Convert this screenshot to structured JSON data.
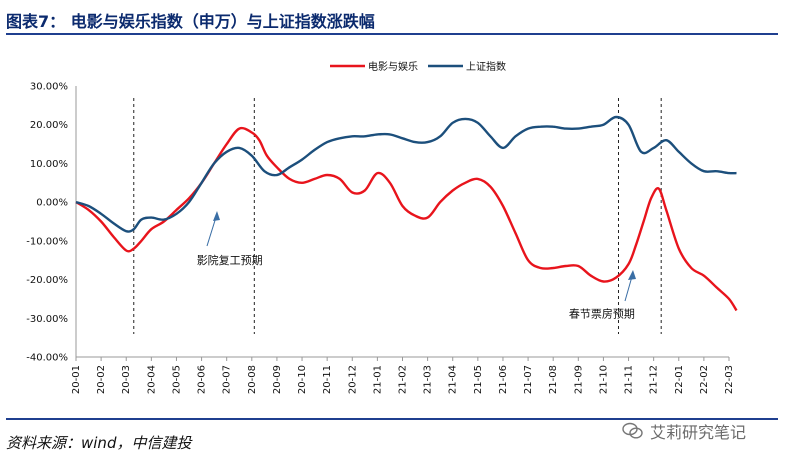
{
  "header": {
    "title": "图表7： 电影与娱乐指数（申万）与上证指数涨跌幅"
  },
  "footer": {
    "source": "资料来源：wind，中信建投",
    "watermark": "艾莉研究笔记"
  },
  "colors": {
    "film": "#e8141c",
    "index": "#1c4f7c",
    "title": "#0b2a6e",
    "rule": "#1f3f8f"
  },
  "chart_data": {
    "type": "line",
    "title": "",
    "xlabel": "",
    "ylabel": "",
    "ylim": [
      -40,
      30
    ],
    "yticks": [
      "30.00%",
      "20.00%",
      "10.00%",
      "0.00%",
      "-10.00%",
      "-20.00%",
      "-30.00%",
      "-40.00%"
    ],
    "ytick_values": [
      30,
      20,
      10,
      0,
      -10,
      -20,
      -30,
      -40
    ],
    "categories": [
      "20-01",
      "20-02",
      "20-03",
      "20-04",
      "20-05",
      "20-06",
      "20-07",
      "20-08",
      "20-09",
      "20-10",
      "20-11",
      "20-12",
      "21-01",
      "21-02",
      "21-03",
      "21-04",
      "21-05",
      "21-06",
      "21-07",
      "21-08",
      "21-09",
      "21-10",
      "21-11",
      "21-12",
      "22-01",
      "22-02",
      "22-03"
    ],
    "series": [
      {
        "name": "电影与娱乐",
        "color": "#e8141c",
        "x": [
          0,
          0.5,
          1,
          1.5,
          2,
          2.3,
          2.6,
          3,
          3.5,
          4,
          4.5,
          5,
          5.5,
          6,
          6.5,
          7,
          7.3,
          7.6,
          8,
          8.5,
          9,
          9.5,
          10,
          10.5,
          11,
          11.5,
          12,
          12.5,
          13,
          13.5,
          14,
          14.5,
          15,
          15.5,
          16,
          16.5,
          17,
          17.5,
          18,
          18.5,
          19,
          19.5,
          20,
          20.5,
          21,
          21.5,
          22,
          22.3,
          22.6,
          22.9,
          23.2,
          23.5,
          24,
          24.5,
          25,
          25.5,
          26,
          26.3
        ],
        "values": [
          0,
          -2,
          -5,
          -9,
          -12.5,
          -12,
          -10,
          -7,
          -5,
          -2,
          1,
          5,
          10,
          15,
          19,
          18,
          16,
          12,
          9,
          6,
          5,
          6,
          7,
          6,
          2.5,
          3,
          7.5,
          5,
          -1,
          -3.5,
          -4,
          0,
          3,
          5,
          6,
          4,
          -1,
          -8,
          -15,
          -17,
          -17,
          -16.5,
          -16.5,
          -19,
          -20.5,
          -19.5,
          -16,
          -11,
          -5,
          1,
          3.5,
          -2,
          -12,
          -17,
          -19,
          -22,
          -25,
          -28
        ]
      },
      {
        "name": "上证指数",
        "color": "#1c4f7c",
        "x": [
          0,
          0.5,
          1,
          1.5,
          2,
          2.3,
          2.6,
          3,
          3.5,
          4,
          4.5,
          5,
          5.5,
          6,
          6.5,
          7,
          7.5,
          8,
          8.5,
          9,
          9.5,
          10,
          10.5,
          11,
          11.5,
          12,
          12.5,
          13,
          13.5,
          14,
          14.5,
          15,
          15.5,
          16,
          16.5,
          17,
          17.5,
          18,
          18.5,
          19,
          19.5,
          20,
          20.5,
          21,
          21.5,
          22,
          22.5,
          23,
          23.5,
          24,
          24.5,
          25,
          25.5,
          26,
          26.3
        ],
        "values": [
          0,
          -1,
          -3,
          -5.5,
          -7.5,
          -7,
          -4.5,
          -4,
          -4.5,
          -3,
          0,
          5,
          10,
          13,
          14,
          12,
          8,
          7,
          9,
          11,
          13.5,
          15.5,
          16.5,
          17,
          17,
          17.5,
          17.5,
          16.5,
          15.5,
          15.5,
          17,
          20.5,
          21.5,
          20.5,
          17,
          14,
          17,
          19,
          19.5,
          19.5,
          19,
          19,
          19.5,
          20,
          22,
          20,
          13,
          14,
          16,
          13,
          10,
          8,
          8,
          7.5,
          7.5
        ]
      }
    ],
    "vlines_x": [
      2.3,
      7.1,
      21.6,
      23.3
    ],
    "annotations": [
      {
        "text": "影院复工预期",
        "x": 6.0,
        "y": -16
      },
      {
        "text": "春节票房预期",
        "x": 20.5,
        "y": -29
      }
    ],
    "legend": "top-center"
  }
}
